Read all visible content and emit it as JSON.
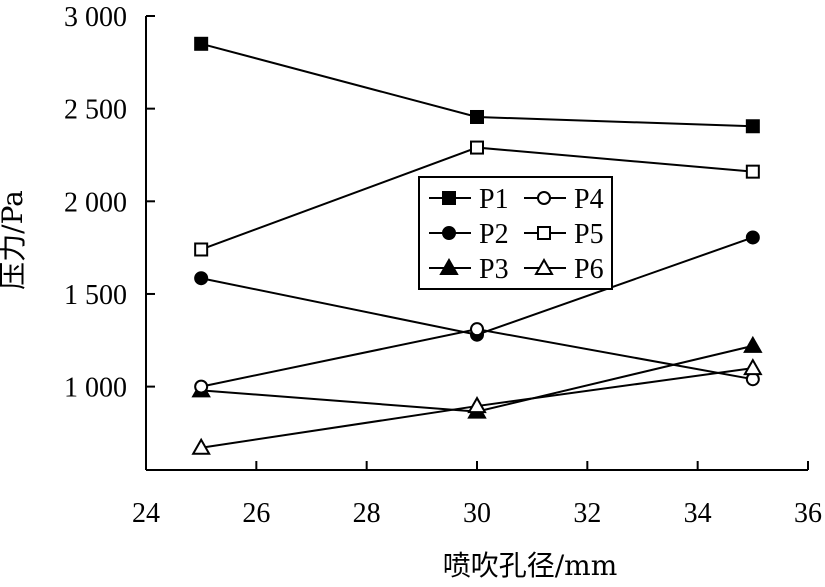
{
  "chart_data": {
    "type": "line",
    "title": "",
    "xlabel": "喷吹孔径/mm",
    "ylabel": "压力/Pa",
    "xlim": [
      24,
      36
    ],
    "ylim": [
      550,
      3000
    ],
    "x_ticks": [
      24,
      26,
      28,
      30,
      32,
      34,
      36
    ],
    "x_tick_labels": [
      "24",
      "26",
      "28",
      "30",
      "32",
      "34",
      "36"
    ],
    "y_ticks": [
      1000,
      1500,
      2000,
      2500,
      3000
    ],
    "y_tick_labels": [
      "1 000",
      "1 500",
      "2 000",
      "2 500",
      "3 000"
    ],
    "grid": false,
    "legend_position": "center",
    "x": [
      25,
      30,
      35
    ],
    "series": [
      {
        "name": "P1",
        "marker": "square-filled",
        "values": [
          2850,
          2455,
          2405
        ]
      },
      {
        "name": "P2",
        "marker": "circle-filled",
        "values": [
          1585,
          1280,
          1805
        ]
      },
      {
        "name": "P3",
        "marker": "triangle-filled",
        "values": [
          980,
          865,
          1220
        ]
      },
      {
        "name": "P4",
        "marker": "circle-open",
        "values": [
          1000,
          1310,
          1040
        ]
      },
      {
        "name": "P5",
        "marker": "square-open",
        "values": [
          1740,
          2290,
          2160
        ]
      },
      {
        "name": "P6",
        "marker": "triangle-open",
        "values": [
          670,
          895,
          1100
        ]
      }
    ],
    "legend_order": [
      "P1",
      "P4",
      "P2",
      "P5",
      "P3",
      "P6"
    ],
    "colors": {
      "line": "#000000",
      "open_fill": "#ffffff"
    }
  }
}
